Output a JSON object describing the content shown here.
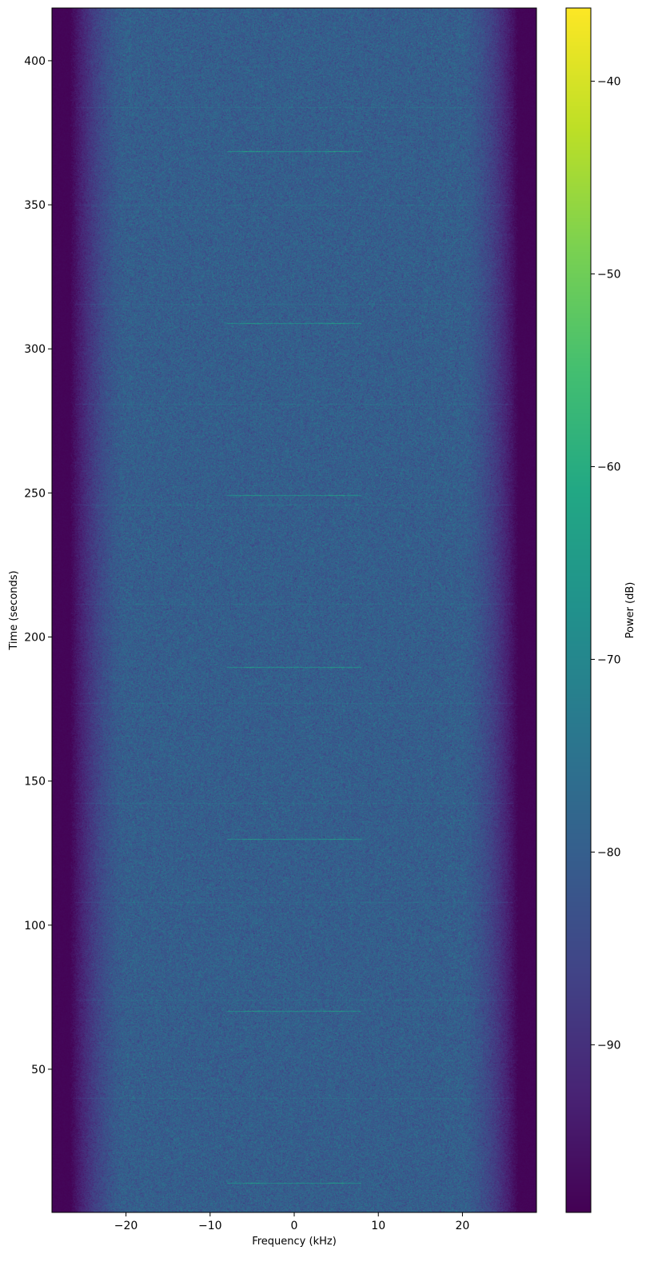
{
  "chart_data": {
    "type": "heatmap",
    "title": "",
    "xlabel": "Frequency (kHz)",
    "ylabel": "Time (seconds)",
    "colorbar_label": "Power (dB)",
    "colormap": "viridis",
    "xlim": [
      -28.8,
      28.8
    ],
    "ylim": [
      0.3,
      418.3
    ],
    "clim": [
      -98.7,
      -36.2
    ],
    "xticks": [
      -20,
      -10,
      0,
      10,
      20
    ],
    "xtick_labels": [
      "−20",
      "−10",
      "0",
      "10",
      "20"
    ],
    "yticks": [
      50,
      100,
      150,
      200,
      250,
      300,
      350,
      400
    ],
    "ytick_labels": [
      "50",
      "100",
      "150",
      "200",
      "250",
      "300",
      "350",
      "400"
    ],
    "cticks": [
      -90,
      -80,
      -70,
      -60,
      -50,
      -40
    ],
    "ctick_labels": [
      "−90",
      "−80",
      "−70",
      "−60",
      "−50",
      "−40"
    ],
    "background_level_db": -80,
    "passband_khz": [
      -25,
      25
    ],
    "edge_level_db": -98,
    "bursts": {
      "times_s": [
        10.5,
        70.2,
        129.9,
        189.6,
        249.3,
        309.0,
        368.7
      ],
      "freq_range_khz": [
        -8,
        8
      ],
      "level_db": -68
    },
    "faint_lines": {
      "times_s": [
        40,
        74,
        108,
        142.5,
        177,
        211.5,
        246,
        281,
        315.5,
        350,
        384
      ],
      "freq_range_khz": [
        -26,
        26
      ],
      "level_db": -76
    },
    "grid": false
  }
}
